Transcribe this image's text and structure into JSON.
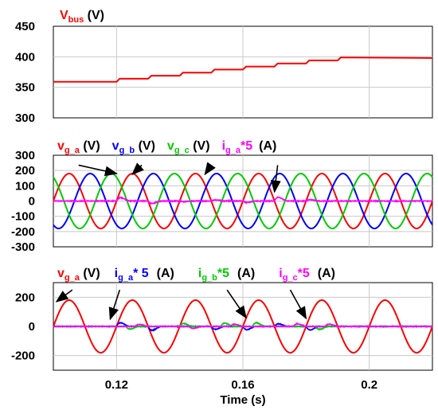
{
  "chart_data": {
    "type": "line",
    "x_axis": {
      "xlabel": "Time (s)",
      "xlim": [
        0.1,
        0.22
      ],
      "ticks": [
        0.12,
        0.16,
        0.2
      ],
      "tick_labels": [
        "0.12",
        "0.16",
        "0.2"
      ]
    },
    "panels": [
      {
        "id": "vbus",
        "ylim": [
          300,
          450
        ],
        "yticks": [
          300,
          350,
          400,
          450
        ],
        "ytick_labels": [
          "300",
          "350",
          "400",
          "450"
        ],
        "legend": [
          {
            "text": "V",
            "sub": "bus",
            "suffix": " (V)",
            "color": "#ff0000"
          }
        ],
        "series": [
          {
            "name": "Vbus",
            "color": "#ff0000",
            "kind": "step",
            "points": [
              [
                0.1,
                359
              ],
              [
                0.12,
                359
              ],
              [
                0.121,
                364
              ],
              [
                0.13,
                364
              ],
              [
                0.131,
                369
              ],
              [
                0.14,
                369
              ],
              [
                0.141,
                374
              ],
              [
                0.15,
                374
              ],
              [
                0.151,
                379
              ],
              [
                0.16,
                379
              ],
              [
                0.161,
                384
              ],
              [
                0.17,
                384
              ],
              [
                0.171,
                389
              ],
              [
                0.18,
                389
              ],
              [
                0.181,
                394
              ],
              [
                0.19,
                394
              ],
              [
                0.191,
                399
              ],
              [
                0.22,
                398
              ]
            ]
          }
        ]
      },
      {
        "id": "grid-voltage",
        "ylim": [
          -300,
          300
        ],
        "yticks": [
          -300,
          -200,
          -100,
          0,
          100,
          200,
          300
        ],
        "ytick_labels": [
          "-300",
          "-200",
          "-100",
          "0",
          "100",
          "200",
          "300"
        ],
        "legend": [
          {
            "text": "v",
            "sub": "g_a",
            "suffix": " (V)",
            "color": "#ff0000"
          },
          {
            "text": "v",
            "sub": "g_b",
            "suffix": " (V)",
            "color": "#0000ff"
          },
          {
            "text": "v",
            "sub": "g_c",
            "suffix": " (V)",
            "color": "#00cc00"
          },
          {
            "text": "i",
            "sub": "g_a",
            "suffix": "*5",
            "color": "#ff00ff"
          },
          {
            "text": "(A)",
            "sub": "",
            "suffix": "",
            "color": "#000000"
          }
        ],
        "series": [
          {
            "name": "vg_a",
            "color": "#ff0000",
            "kind": "sine",
            "amplitude": 180,
            "freq_hz": 50,
            "phase_deg": 0,
            "ref_time": 0.12
          },
          {
            "name": "vg_b",
            "color": "#0000ff",
            "kind": "sine",
            "amplitude": 180,
            "freq_hz": 50,
            "phase_deg": -120,
            "ref_time": 0.12
          },
          {
            "name": "vg_c",
            "color": "#00cc00",
            "kind": "sine",
            "amplitude": 180,
            "freq_hz": 50,
            "phase_deg": 120,
            "ref_time": 0.12
          },
          {
            "name": "ig_a*5",
            "color": "#ff00ff",
            "kind": "transient",
            "base": 0,
            "noise": 5,
            "events": [
              [
                0.12,
                50
              ],
              [
                0.13,
                -35
              ],
              [
                0.14,
                -10
              ],
              [
                0.15,
                15
              ],
              [
                0.16,
                -20
              ],
              [
                0.17,
                55
              ],
              [
                0.18,
                20
              ]
            ]
          }
        ],
        "arrows": [
          {
            "from": [
              0.108,
              235
            ],
            "to": [
              0.12,
              180
            ]
          },
          {
            "from": [
              0.128,
              235
            ],
            "to": [
              0.125,
              175
            ]
          },
          {
            "from": [
              0.15,
              235
            ],
            "to": [
              0.148,
              175
            ]
          },
          {
            "from": [
              0.171,
              235
            ],
            "to": [
              0.17,
              60
            ]
          }
        ]
      },
      {
        "id": "grid-current",
        "ylim": [
          -300,
          300
        ],
        "yticks": [
          -200,
          0,
          200
        ],
        "ytick_labels": [
          "-200",
          "0",
          "200"
        ],
        "legend": [
          {
            "text": "v",
            "sub": "g_a",
            "suffix": " (V)",
            "color": "#ff0000"
          },
          {
            "text": "i",
            "sub": "g_a",
            "suffix": "* 5",
            "color": "#0000ff"
          },
          {
            "text": "(A)",
            "sub": "",
            "suffix": "",
            "color": "#000000"
          },
          {
            "text": "i",
            "sub": "g_b",
            "suffix": "*5",
            "color": "#00cc00"
          },
          {
            "text": "(A)",
            "sub": "",
            "suffix": "",
            "color": "#000000"
          },
          {
            "text": "i",
            "sub": "g_c",
            "suffix": "*5",
            "color": "#ff00ff"
          },
          {
            "text": "(A)",
            "sub": "",
            "suffix": "",
            "color": "#000000"
          }
        ],
        "series": [
          {
            "name": "vg_a",
            "color": "#ff0000",
            "kind": "sine",
            "amplitude": 180,
            "freq_hz": 50,
            "phase_deg": 0,
            "ref_time": 0.1
          },
          {
            "name": "ig_a*5",
            "color": "#0000ff",
            "kind": "transient",
            "base": 0,
            "noise": 4,
            "events": [
              [
                0.12,
                55
              ],
              [
                0.13,
                -60
              ],
              [
                0.15,
                -45
              ],
              [
                0.16,
                -50
              ],
              [
                0.17,
                40
              ],
              [
                0.18,
                -55
              ]
            ]
          },
          {
            "name": "ig_b*5",
            "color": "#00cc00",
            "kind": "transient",
            "base": 0,
            "noise": 4,
            "events": [
              [
                0.123,
                -40
              ],
              [
                0.14,
                45
              ],
              [
                0.153,
                50
              ],
              [
                0.163,
                55
              ],
              [
                0.183,
                -45
              ]
            ]
          },
          {
            "name": "ig_c*5",
            "color": "#ff00ff",
            "kind": "transient",
            "base": 0,
            "noise": 4,
            "events": [
              [
                0.126,
                30
              ],
              [
                0.143,
                -30
              ],
              [
                0.156,
                35
              ],
              [
                0.176,
                40
              ],
              [
                0.186,
                35
              ]
            ]
          }
        ],
        "arrows": [
          {
            "from": [
              0.106,
              250
            ],
            "to": [
              0.101,
              170
            ]
          },
          {
            "from": [
              0.121,
              250
            ],
            "to": [
              0.118,
              50
            ]
          },
          {
            "from": [
              0.155,
              250
            ],
            "to": [
              0.161,
              60
            ]
          },
          {
            "from": [
              0.175,
              250
            ],
            "to": [
              0.18,
              55
            ]
          }
        ]
      }
    ]
  }
}
